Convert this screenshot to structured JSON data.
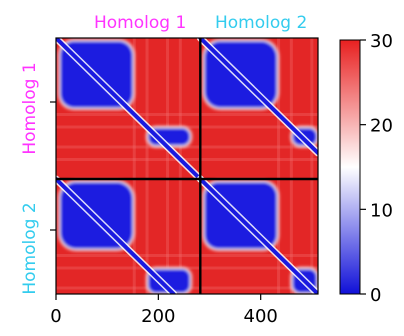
{
  "chart_data": {
    "type": "heatmap",
    "title": "",
    "xlabel": "",
    "ylabel": "",
    "xlim": [
      0,
      512
    ],
    "ylim": [
      512,
      0
    ],
    "x_ticks": [
      {
        "value": 0,
        "label": "0"
      },
      {
        "value": 200,
        "label": "200"
      },
      {
        "value": 400,
        "label": "400"
      }
    ],
    "y_ticks": [
      {
        "value": 128,
        "label": ""
      },
      {
        "value": 384,
        "label": ""
      }
    ],
    "block_boundary": 282,
    "block_labels": {
      "top": [
        {
          "text": "Homolog 1",
          "color": "#ff33ff"
        },
        {
          "text": "Homolog 2",
          "color": "#33ccee"
        }
      ],
      "left": [
        {
          "text": "Homolog 1",
          "color": "#ff33ff"
        },
        {
          "text": "Homolog 2",
          "color": "#33ccee"
        }
      ]
    },
    "colorbar": {
      "min": 0,
      "max": 30,
      "ticks": [
        {
          "value": 0,
          "label": "0"
        },
        {
          "value": 10,
          "label": "10"
        },
        {
          "value": 20,
          "label": "20"
        },
        {
          "value": 30,
          "label": "30"
        }
      ],
      "colormap": [
        "#1010d8",
        "#ffffff",
        "#e82020"
      ]
    },
    "colors": {
      "low": "#1a1ae0",
      "mid": "#ffffff",
      "high": "#e32626",
      "divider": "#000000"
    }
  }
}
